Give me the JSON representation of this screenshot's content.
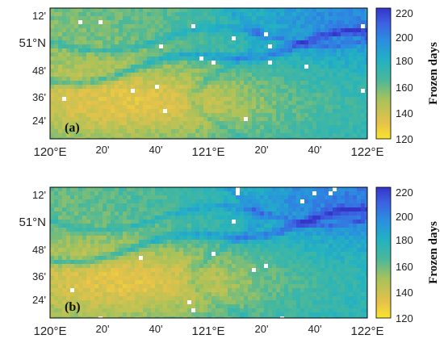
{
  "panels": [
    {
      "label": "(a)",
      "y_ticks": [
        "12'",
        "51°N",
        "48'",
        "36'",
        "24'"
      ],
      "x_ticks": [
        "120°E",
        "20'",
        "40'",
        "121°E",
        "20'",
        "40'",
        "122°E"
      ]
    },
    {
      "label": "(b)",
      "y_ticks": [
        "12'",
        "51°N",
        "48'",
        "36'",
        "24'"
      ],
      "x_ticks": [
        "120°E",
        "20'",
        "40'",
        "121°E",
        "20'",
        "40'",
        "122°E"
      ]
    }
  ],
  "colorbar": {
    "title": "Frozen days",
    "range": [
      120,
      220
    ],
    "ticks": [
      "220",
      "200",
      "180",
      "160",
      "140",
      "120"
    ]
  },
  "colors": {
    "low": "#f7e23a",
    "mid": "#40b8a0",
    "high": "#3a3ad6"
  }
}
